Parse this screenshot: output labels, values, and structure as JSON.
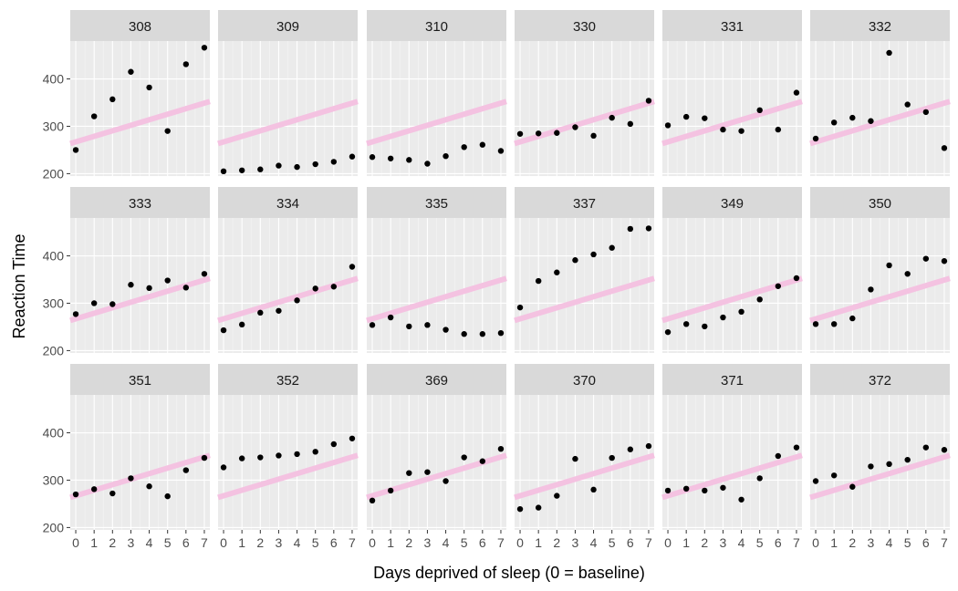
{
  "chart_data": {
    "type": "scatter",
    "facet_by": "Subject",
    "facet_columns": 6,
    "xlabel": "Days deprived of sleep (0 = baseline)",
    "ylabel": "Reaction Time",
    "xlim": [
      -0.3,
      7.3
    ],
    "ylim": [
      195,
      480
    ],
    "x_ticks": [
      0,
      1,
      2,
      3,
      4,
      5,
      6,
      7
    ],
    "y_ticks": [
      200,
      300,
      400
    ],
    "grid": true,
    "panel_background": "#ebebeb",
    "strip_background": "#d9d9d9",
    "point_color": "#000000",
    "reference_line": {
      "intercept": 267,
      "slope": 11.7,
      "color": "#f4c2e1"
    },
    "days": [
      0,
      1,
      2,
      3,
      4,
      5,
      6,
      7
    ],
    "panels": [
      {
        "subject": "308",
        "reaction": [
          250,
          321,
          357,
          415,
          382,
          290,
          431,
          466
        ]
      },
      {
        "subject": "309",
        "reaction": [
          205,
          207,
          209,
          217,
          214,
          220,
          225,
          236
        ]
      },
      {
        "subject": "310",
        "reaction": [
          235,
          232,
          229,
          221,
          237,
          256,
          261,
          248
        ]
      },
      {
        "subject": "330",
        "reaction": [
          284,
          285,
          286,
          298,
          280,
          318,
          305,
          354
        ]
      },
      {
        "subject": "331",
        "reaction": [
          302,
          320,
          317,
          293,
          290,
          334,
          293,
          371
        ]
      },
      {
        "subject": "332",
        "reaction": [
          274,
          308,
          318,
          311,
          455,
          346,
          330,
          254
        ]
      },
      {
        "subject": "333",
        "reaction": [
          277,
          300,
          298,
          339,
          332,
          348,
          333,
          362
        ]
      },
      {
        "subject": "334",
        "reaction": [
          243,
          255,
          280,
          284,
          306,
          331,
          335,
          377
        ]
      },
      {
        "subject": "335",
        "reaction": [
          254,
          270,
          251,
          254,
          244,
          235,
          235,
          237
        ]
      },
      {
        "subject": "337",
        "reaction": [
          291,
          347,
          365,
          391,
          403,
          417,
          457,
          458
        ]
      },
      {
        "subject": "349",
        "reaction": [
          239,
          256,
          251,
          270,
          282,
          308,
          336,
          353
        ]
      },
      {
        "subject": "350",
        "reaction": [
          256,
          256,
          268,
          329,
          380,
          362,
          394,
          389
        ]
      },
      {
        "subject": "351",
        "reaction": [
          270,
          281,
          272,
          304,
          287,
          266,
          321,
          347
        ]
      },
      {
        "subject": "352",
        "reaction": [
          327,
          346,
          348,
          352,
          355,
          360,
          376,
          388
        ]
      },
      {
        "subject": "369",
        "reaction": [
          257,
          278,
          315,
          317,
          298,
          348,
          340,
          366
        ]
      },
      {
        "subject": "370",
        "reaction": [
          239,
          242,
          267,
          345,
          280,
          347,
          365,
          372
        ]
      },
      {
        "subject": "371",
        "reaction": [
          278,
          282,
          278,
          284,
          259,
          304,
          351,
          369
        ]
      },
      {
        "subject": "372",
        "reaction": [
          298,
          310,
          286,
          329,
          334,
          343,
          369,
          364
        ]
      }
    ]
  }
}
